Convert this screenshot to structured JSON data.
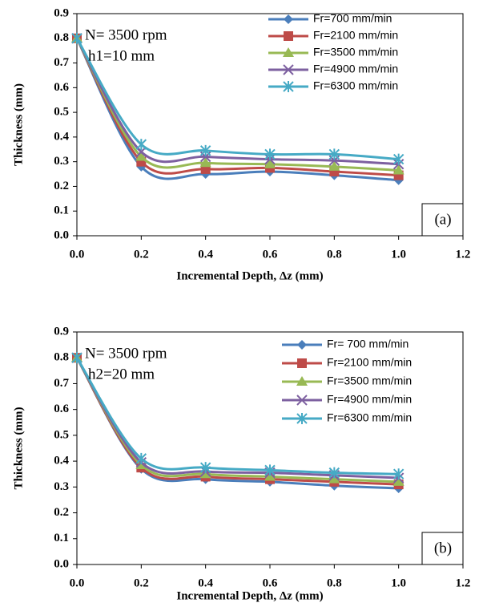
{
  "chart_data": [
    {
      "type": "line",
      "xlabel": "Incremental Depth, Δz (mm)",
      "ylabel": "Thickness (mm)",
      "annotations": [
        "N= 3500 rpm",
        "h1=10 mm"
      ],
      "panel_label": "(a)",
      "x": [
        0,
        0.2,
        0.4,
        0.6,
        0.8,
        1
      ],
      "series": [
        {
          "name": "Fr=700 mm/min",
          "color": "#4a7ebb",
          "marker": "diamond",
          "values": [
            0.8,
            0.28,
            0.25,
            0.26,
            0.245,
            0.225
          ]
        },
        {
          "name": "Fr=2100 mm/min",
          "color": "#be4b48",
          "marker": "square",
          "values": [
            0.8,
            0.3,
            0.27,
            0.275,
            0.26,
            0.245
          ]
        },
        {
          "name": "Fr=3500 mm/min",
          "color": "#98b954",
          "marker": "triangle",
          "values": [
            0.8,
            0.32,
            0.295,
            0.29,
            0.28,
            0.265
          ]
        },
        {
          "name": "Fr=4900 mm/min",
          "color": "#7d60a0",
          "marker": "x",
          "values": [
            0.8,
            0.34,
            0.32,
            0.31,
            0.305,
            0.29
          ]
        },
        {
          "name": "Fr=6300 mm/min",
          "color": "#46aac5",
          "marker": "star",
          "values": [
            0.8,
            0.37,
            0.345,
            0.33,
            0.33,
            0.31
          ]
        }
      ],
      "xlim": [
        0,
        1.2
      ],
      "xticks": [
        {
          "value": 0,
          "label": "0.0"
        },
        0.2,
        0.4,
        0.6,
        0.8,
        {
          "value": 1,
          "label": "1.0"
        },
        1.2
      ],
      "ylim": [
        0,
        0.9
      ],
      "yticks": [
        {
          "value": 0,
          "label": "0.0"
        },
        0.1,
        0.2,
        0.3,
        0.4,
        0.5,
        0.6,
        0.7,
        0.8,
        0.9
      ],
      "legend": "upper right"
    },
    {
      "type": "line",
      "xlabel": "Incremental Depth, Δz (mm)",
      "ylabel": "Thickness (mm)",
      "annotations": [
        "N= 3500 rpm",
        "h2=20 mm"
      ],
      "panel_label": "(b)",
      "x": [
        0,
        0.2,
        0.4,
        0.6,
        0.8,
        1
      ],
      "series": [
        {
          "name": "Fr= 700 mm/min",
          "color": "#4a7ebb",
          "marker": "diamond",
          "values": [
            0.8,
            0.37,
            0.33,
            0.32,
            0.305,
            0.295
          ]
        },
        {
          "name": "Fr=2100 mm/min",
          "color": "#be4b48",
          "marker": "square",
          "values": [
            0.8,
            0.375,
            0.34,
            0.33,
            0.32,
            0.31
          ]
        },
        {
          "name": "Fr=3500 mm/min",
          "color": "#98b954",
          "marker": "triangle",
          "values": [
            0.8,
            0.385,
            0.35,
            0.34,
            0.33,
            0.32
          ]
        },
        {
          "name": "Fr=4900 mm/min",
          "color": "#7d60a0",
          "marker": "x",
          "values": [
            0.8,
            0.395,
            0.36,
            0.355,
            0.345,
            0.335
          ]
        },
        {
          "name": "Fr=6300 mm/min",
          "color": "#46aac5",
          "marker": "star",
          "values": [
            0.8,
            0.41,
            0.375,
            0.365,
            0.355,
            0.35
          ]
        }
      ],
      "xlim": [
        0,
        1.2
      ],
      "xticks": [
        {
          "value": 0,
          "label": "0.0"
        },
        0.2,
        0.4,
        0.6,
        0.8,
        {
          "value": 1,
          "label": "1.0"
        },
        1.2
      ],
      "ylim": [
        0,
        0.9
      ],
      "yticks": [
        {
          "value": 0,
          "label": "0.0"
        },
        0.1,
        0.2,
        0.3,
        0.4,
        0.5,
        0.6,
        0.7,
        0.8,
        0.9
      ],
      "legend": "upper right"
    }
  ]
}
